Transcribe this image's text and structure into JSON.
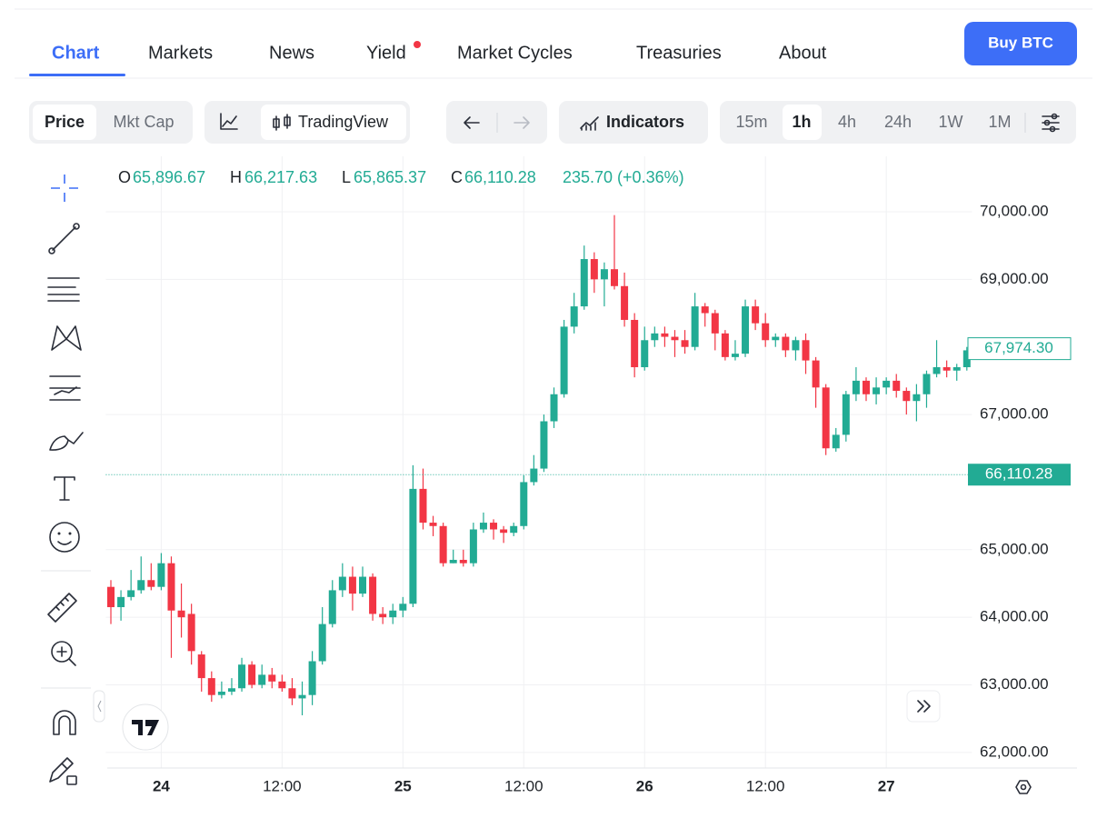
{
  "nav": {
    "tabs": [
      "Chart",
      "Markets",
      "News",
      "Yield",
      "Market Cycles",
      "Treasuries",
      "About"
    ],
    "button": "Buy BTC"
  },
  "toolbar": {
    "modes": [
      "Price",
      "Mkt Cap"
    ],
    "chart_style": "TradingView",
    "indicators": "Indicators",
    "intervals": [
      "15m",
      "1h",
      "4h",
      "24h",
      "1W",
      "1M"
    ]
  },
  "chart_data": {
    "type": "candlestick",
    "ohlc_legend": [
      {
        "label": "O",
        "value": "65,896.67"
      },
      {
        "label": "H",
        "value": "66,217.63"
      },
      {
        "label": "L",
        "value": "65,865.37"
      },
      {
        "label": "C",
        "value": "66,110.28"
      }
    ],
    "change": "235.70 (+0.36%)",
    "up_color": "#22ab94",
    "down_color": "#f23645",
    "categories": [
      null,
      null,
      null,
      null,
      null,
      "24",
      null,
      null,
      null,
      null,
      null,
      null,
      null,
      null,
      null,
      null,
      null,
      "12:00",
      null,
      null,
      null,
      null,
      null,
      null,
      null,
      null,
      null,
      null,
      null,
      "25",
      null,
      null,
      null,
      null,
      null,
      null,
      null,
      null,
      null,
      null,
      null,
      "12:00",
      null,
      null,
      null,
      null,
      null,
      null,
      null,
      null,
      null,
      null,
      null,
      "26",
      null,
      null,
      null,
      null,
      null,
      null,
      null,
      null,
      null,
      null,
      null,
      "12:00",
      null,
      null,
      null,
      null,
      null,
      null,
      null,
      null,
      null,
      null,
      null,
      "27",
      null,
      null,
      null,
      null,
      null,
      null,
      null,
      null
    ],
    "open": [
      64450,
      64150,
      64300,
      64400,
      64550,
      64450,
      64800,
      64100,
      64050,
      63450,
      63100,
      62850,
      62900,
      62950,
      63300,
      63000,
      63150,
      63050,
      62950,
      62800,
      62850,
      63350,
      63900,
      64400,
      64600,
      64350,
      64600,
      64050,
      64000,
      64100,
      64200,
      65900,
      65400,
      65350,
      64800,
      64850,
      64800,
      65300,
      65400,
      65300,
      65250,
      65350,
      66000,
      66200,
      66900,
      67300,
      68300,
      68600,
      69300,
      69000,
      69150,
      68900,
      68400,
      67700,
      68100,
      68200,
      68150,
      68100,
      68000,
      68600,
      68500,
      68200,
      67850,
      67900,
      68600,
      68350,
      68100,
      68150,
      67950,
      68100,
      67800,
      67400,
      66500,
      66700,
      67300,
      67500,
      67300,
      67400,
      67500,
      67350,
      67200,
      67300,
      67600,
      67700,
      67650,
      67700
    ],
    "high": [
      64550,
      64400,
      64700,
      64900,
      64800,
      64950,
      64900,
      64500,
      64200,
      63500,
      63200,
      63050,
      63100,
      63400,
      63350,
      63300,
      63250,
      63150,
      63100,
      63050,
      63500,
      64150,
      64550,
      64800,
      64750,
      64750,
      64650,
      64150,
      64200,
      64300,
      66250,
      66200,
      65500,
      65400,
      65000,
      65000,
      65400,
      65550,
      65450,
      65350,
      65400,
      66100,
      66400,
      67000,
      67400,
      68400,
      68800,
      69500,
      69400,
      69250,
      69950,
      69100,
      68500,
      68300,
      68300,
      68300,
      68250,
      68250,
      68800,
      68650,
      68550,
      68250,
      68100,
      68700,
      68700,
      68500,
      68200,
      68200,
      68150,
      68200,
      67850,
      67450,
      66800,
      67350,
      67700,
      67550,
      67550,
      67550,
      67600,
      67400,
      67450,
      67650,
      68100,
      67800,
      67750,
      68000
    ],
    "low": [
      63900,
      63950,
      64250,
      64350,
      64400,
      64400,
      63400,
      63700,
      63300,
      62900,
      62750,
      62800,
      62850,
      62900,
      62950,
      62950,
      62950,
      62900,
      62700,
      62550,
      62700,
      63300,
      63850,
      64300,
      64100,
      64300,
      63950,
      63900,
      63900,
      64000,
      64150,
      65300,
      65200,
      64750,
      64800,
      64750,
      64750,
      65250,
      65150,
      65100,
      65200,
      65300,
      65950,
      66150,
      66800,
      67250,
      68200,
      68550,
      68800,
      68600,
      68850,
      68300,
      67550,
      67650,
      68000,
      68000,
      67850,
      67900,
      67950,
      68300,
      67950,
      67800,
      67800,
      67850,
      68250,
      68000,
      68000,
      67850,
      67800,
      67600,
      67100,
      66400,
      66450,
      66600,
      67200,
      67200,
      67150,
      67300,
      67250,
      67000,
      66900,
      67100,
      67550,
      67550,
      67500,
      67650
    ],
    "close": [
      64150,
      64300,
      64400,
      64550,
      64450,
      64800,
      64100,
      64000,
      63500,
      63100,
      62850,
      62900,
      62950,
      63300,
      63000,
      63150,
      63050,
      62950,
      62800,
      62850,
      63350,
      63900,
      64400,
      64600,
      64350,
      64600,
      64050,
      64000,
      64100,
      64200,
      65900,
      65400,
      65350,
      64800,
      64850,
      64800,
      65300,
      65400,
      65300,
      65250,
      65350,
      66000,
      66200,
      66900,
      67300,
      68300,
      68600,
      69300,
      69000,
      69150,
      68900,
      68400,
      67700,
      68100,
      68200,
      68150,
      68100,
      68000,
      68600,
      68500,
      68200,
      67850,
      67900,
      68600,
      68350,
      68100,
      68150,
      67950,
      68100,
      67800,
      67400,
      66500,
      66700,
      67300,
      67500,
      67300,
      67400,
      67500,
      67350,
      67200,
      67300,
      67600,
      67700,
      67650,
      67700,
      67950
    ],
    "ylim": [
      61770,
      70820
    ],
    "yticks": [
      {
        "value": 62000,
        "label": "62,000.00"
      },
      {
        "value": 63000,
        "label": "63,000.00"
      },
      {
        "value": 64000,
        "label": "64,000.00"
      },
      {
        "value": 65000,
        "label": "65,000.00"
      },
      {
        "value": 67000,
        "label": "67,000.00"
      },
      {
        "value": 69000,
        "label": "69,000.00"
      },
      {
        "value": 70000,
        "label": "70,000.00"
      }
    ],
    "grid": true,
    "price_lines": [
      {
        "value": 67974.3,
        "label": "67,974.30",
        "style": "outline"
      },
      {
        "value": 66110.28,
        "label": "66,110.28",
        "style": "filled"
      }
    ]
  }
}
